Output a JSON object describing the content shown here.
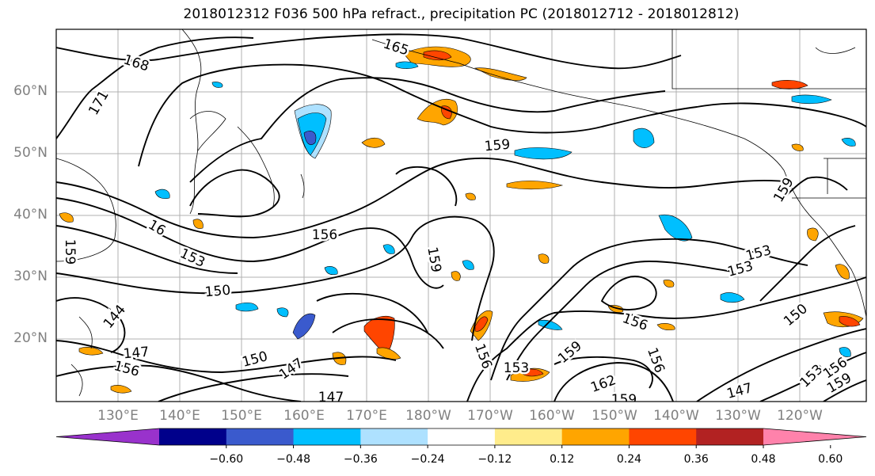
{
  "title": "2018012312 F036 500 hPa refract., precipitation PC (2018012712 - 2018012812)",
  "lat_labels": [
    "60°N",
    "50°N",
    "40°N",
    "30°N",
    "20°N"
  ],
  "lon_labels": [
    "130°E",
    "140°E",
    "150°E",
    "160°E",
    "170°E",
    "180°W",
    "170°W",
    "160°W",
    "150°W",
    "140°W",
    "130°W",
    "120°W"
  ],
  "contour_labels": [
    "168",
    "165",
    "171",
    "159",
    "159",
    "16",
    "159",
    "156",
    "153",
    "150",
    "159",
    "153",
    "153",
    "150",
    "144",
    "147",
    "150",
    "147",
    "147",
    "156",
    "153",
    "159",
    "156",
    "150",
    "162",
    "159",
    "147",
    "153",
    "156",
    "156",
    "159",
    "156"
  ],
  "colorbar": {
    "tick_labels": [
      "−0.60",
      "−0.48",
      "−0.36",
      "−0.24",
      "−0.12",
      "0.12",
      "0.24",
      "0.36",
      "0.48",
      "0.60"
    ],
    "colors": [
      "#9932cc",
      "#00008b",
      "#3a5acd",
      "#00bfff",
      "#aee1ff",
      "#ffffff",
      "#ffec8b",
      "#ffa500",
      "#ff4500",
      "#b22222",
      "#ff82ab"
    ]
  }
}
